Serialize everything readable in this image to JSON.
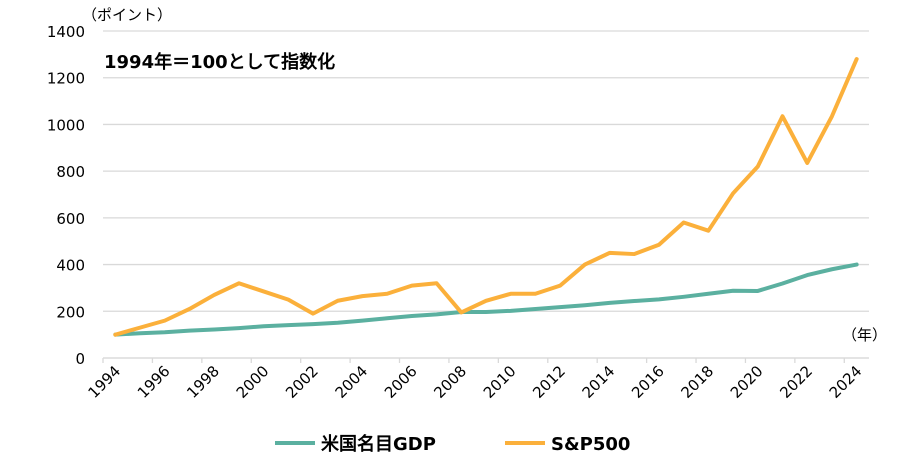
{
  "chart_data": {
    "type": "line",
    "unit_label": "（ポイント）",
    "annotation": "1994年＝100として指数化",
    "xlabel": "（年）",
    "ylim": [
      0,
      1400
    ],
    "yticks": [
      0,
      200,
      400,
      600,
      800,
      1000,
      1200,
      1400
    ],
    "grid": true,
    "legend_position": "bottom",
    "x": [
      1994,
      1995,
      1996,
      1997,
      1998,
      1999,
      2000,
      2001,
      2002,
      2003,
      2004,
      2005,
      2006,
      2007,
      2008,
      2009,
      2010,
      2011,
      2012,
      2013,
      2014,
      2015,
      2016,
      2017,
      2018,
      2019,
      2020,
      2021,
      2022,
      2023,
      2024
    ],
    "xtick_labels": [
      "1994",
      "1996",
      "1998",
      "2000",
      "2002",
      "2004",
      "2006",
      "2008",
      "2010",
      "2012",
      "2014",
      "2016",
      "2018",
      "2020",
      "2022",
      "2024"
    ],
    "series": [
      {
        "name": "米国名目GDP",
        "color": "#5BB0A0",
        "values": [
          100,
          106,
          110,
          117,
          122,
          128,
          136,
          141,
          145,
          151,
          160,
          170,
          180,
          187,
          197,
          197,
          202,
          210,
          218,
          226,
          236,
          244,
          251,
          262,
          275,
          288,
          287,
          319,
          355,
          380,
          400
        ]
      },
      {
        "name": "S&P500",
        "color": "#FBB03B",
        "values": [
          100,
          130,
          160,
          210,
          270,
          320,
          285,
          250,
          190,
          245,
          265,
          275,
          310,
          320,
          195,
          245,
          275,
          275,
          310,
          400,
          450,
          445,
          485,
          580,
          545,
          705,
          820,
          1035,
          835,
          1035,
          1280
        ]
      }
    ]
  }
}
